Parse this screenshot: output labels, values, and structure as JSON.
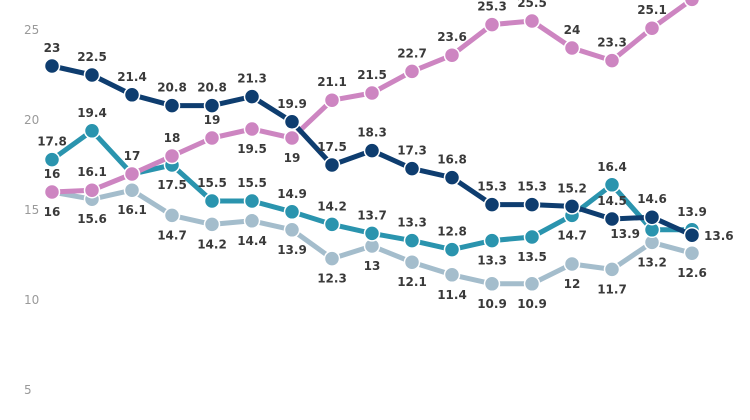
{
  "chart_data": {
    "type": "line",
    "title": "",
    "xlabel": "",
    "ylabel": "",
    "ylim": [
      5,
      26.7
    ],
    "yticks": [
      "5",
      "10",
      "15",
      "20",
      "25"
    ],
    "grid": false,
    "series": [
      {
        "color": "#0e3d6f",
        "values": [
          23,
          22.5,
          21.4,
          20.8,
          20.8,
          21.3,
          19.9,
          17.5,
          18.3,
          17.3,
          16.8,
          15.3,
          15.3,
          15.2,
          14.5,
          14.6,
          13.6
        ],
        "labels": [
          "23",
          "22.5",
          "21.4",
          "20.8",
          "20.8",
          "21.3",
          "19.9",
          "17.5",
          "18.3",
          "17.3",
          "16.8",
          "15.3",
          "15.3",
          "15.2",
          "14.5",
          "14.6",
          "13.6"
        ]
      },
      {
        "color": "#cd85c1",
        "values": [
          16,
          16.1,
          17,
          18,
          19,
          19.5,
          19,
          21.1,
          21.5,
          22.7,
          23.6,
          25.3,
          25.5,
          24,
          23.3,
          25.1,
          26.7
        ],
        "labels": [
          "16",
          "16.1",
          "17",
          "18",
          "19",
          "19.5",
          "19",
          "21.1",
          "21.5",
          "22.7",
          "23.6",
          "25.3",
          "25.5",
          "24",
          "23.3",
          "25.1",
          ""
        ]
      },
      {
        "color": "#2a94ae",
        "values": [
          17.8,
          19.4,
          17,
          17.5,
          15.5,
          15.5,
          14.9,
          14.2,
          13.7,
          13.3,
          12.8,
          13.3,
          13.5,
          14.7,
          16.4,
          13.9,
          13.9
        ],
        "labels": [
          "17.8",
          "19.4",
          "",
          "17.5",
          "15.5",
          "15.5",
          "14.9",
          "14.2",
          "13.7",
          "13.3",
          "12.8",
          "13.3",
          "13.5",
          "14.7",
          "16.4",
          "13.9",
          "13.9"
        ]
      },
      {
        "color": "#a4bdcc",
        "values": [
          16,
          15.6,
          16.1,
          14.7,
          14.2,
          14.4,
          13.9,
          12.3,
          13,
          12.1,
          11.4,
          10.9,
          10.9,
          12,
          11.7,
          13.2,
          12.6
        ],
        "labels": [
          "16",
          "15.6",
          "16.1",
          "14.7",
          "14.2",
          "14.4",
          "13.9",
          "12.3",
          "13",
          "12.1",
          "11.4",
          "10.9",
          "10.9",
          "12",
          "11.7",
          "13.2",
          "12.6"
        ]
      }
    ]
  }
}
